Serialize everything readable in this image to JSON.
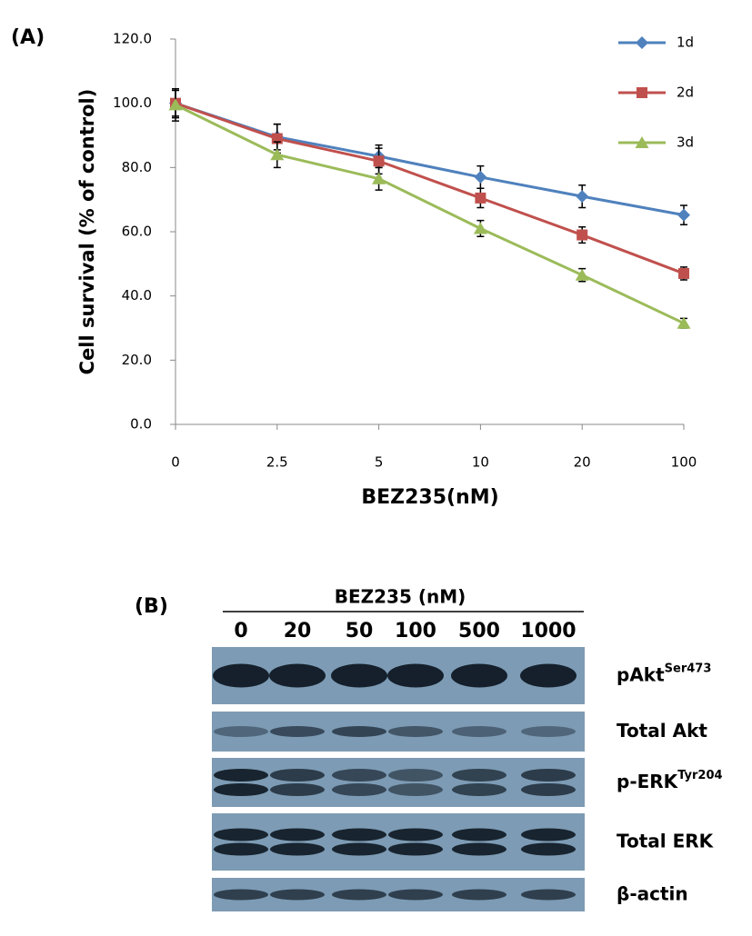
{
  "chart_data": {
    "type": "line",
    "panel_label": "(A)",
    "y_label": "Cell survival (% of control)",
    "x_label": "BEZ235(nM)",
    "categories": [
      "0",
      "2.5",
      "5",
      "10",
      "20",
      "100"
    ],
    "series": [
      {
        "name": "1d",
        "color": "#4f81bd",
        "marker": "diamond",
        "values": [
          100,
          89.5,
          83.5,
          77,
          71,
          65.2
        ],
        "errors": [
          4.5,
          4,
          3.5,
          3.5,
          3.5,
          3
        ]
      },
      {
        "name": "2d",
        "color": "#c0504d",
        "marker": "square",
        "values": [
          100,
          89,
          82,
          70.5,
          59,
          47
        ],
        "errors": [
          4,
          4.5,
          4,
          3,
          2.5,
          2
        ]
      },
      {
        "name": "3d",
        "color": "#9bbb59",
        "marker": "triangle",
        "values": [
          99.5,
          84,
          76.5,
          61,
          46.5,
          31.5
        ],
        "errors": [
          5,
          4,
          3.5,
          2.5,
          2,
          1.5
        ]
      }
    ],
    "ylim": [
      0,
      120
    ],
    "yticks": [
      {
        "value": 0,
        "label": "0.0"
      },
      {
        "value": 20,
        "label": "20.0"
      },
      {
        "value": 40,
        "label": "40.0"
      },
      {
        "value": 60,
        "label": "60.0"
      },
      {
        "value": 80,
        "label": "80.0"
      },
      {
        "value": 100,
        "label": "100.0"
      },
      {
        "value": 120,
        "label": "120.0"
      }
    ],
    "grid": false,
    "legend": "upper right"
  },
  "blot": {
    "panel_label": "(B)",
    "header": "BEZ235 (nM)",
    "lanes": [
      "0",
      "20",
      "50",
      "100",
      "500",
      "1000"
    ],
    "rows": [
      {
        "name": "pAkt",
        "sup": "Ser473"
      },
      {
        "name": "Total Akt"
      },
      {
        "name": "p-ERK",
        "sup": "Tyr204"
      },
      {
        "name": "Total ERK"
      },
      {
        "name": "β-actin"
      }
    ]
  }
}
